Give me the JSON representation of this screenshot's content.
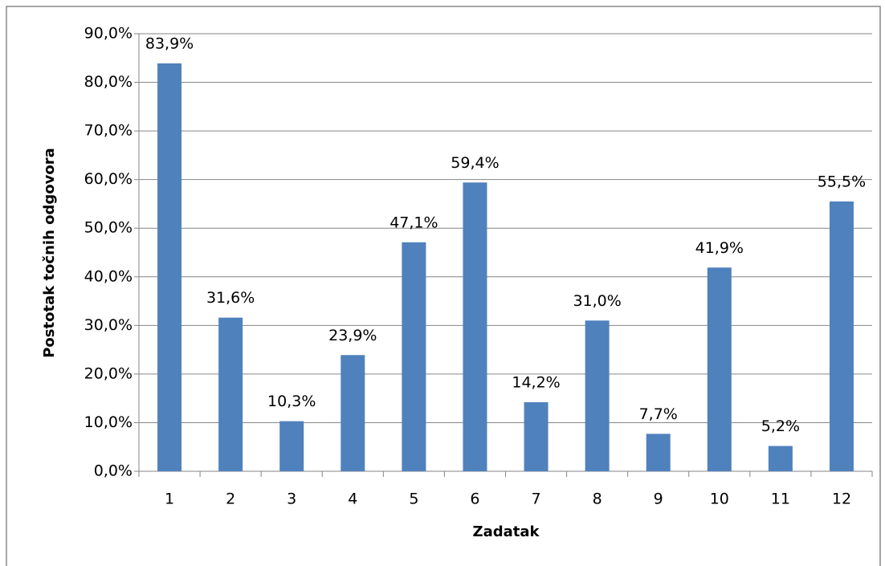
{
  "chart_data": {
    "type": "bar",
    "categories": [
      "1",
      "2",
      "3",
      "4",
      "5",
      "6",
      "7",
      "8",
      "9",
      "10",
      "11",
      "12"
    ],
    "values": [
      83.9,
      31.6,
      10.3,
      23.9,
      47.1,
      59.4,
      14.2,
      31.0,
      7.7,
      41.9,
      5.2,
      55.5
    ],
    "value_labels": [
      "83,9%",
      "31,6%",
      "10,3%",
      "23,9%",
      "47,1%",
      "59,4%",
      "14,2%",
      "31,0%",
      "7,7%",
      "41,9%",
      "5,2%",
      "55,5%"
    ],
    "color": "#4f81bd",
    "xlabel": "Zadatak",
    "ylabel": "Postotak točnih odgovora",
    "ylim": [
      0,
      90
    ],
    "yticks": [
      {
        "value": 0,
        "label": "0,0%"
      },
      {
        "value": 10,
        "label": "10,0%"
      },
      {
        "value": 20,
        "label": "20,0%"
      },
      {
        "value": 30,
        "label": "30,0%"
      },
      {
        "value": 40,
        "label": "40,0%"
      },
      {
        "value": 50,
        "label": "50,0%"
      },
      {
        "value": 60,
        "label": "60,0%"
      },
      {
        "value": 70,
        "label": "70,0%"
      },
      {
        "value": 80,
        "label": "80,0%"
      },
      {
        "value": 90,
        "label": "90,0%"
      }
    ],
    "grid": true
  }
}
